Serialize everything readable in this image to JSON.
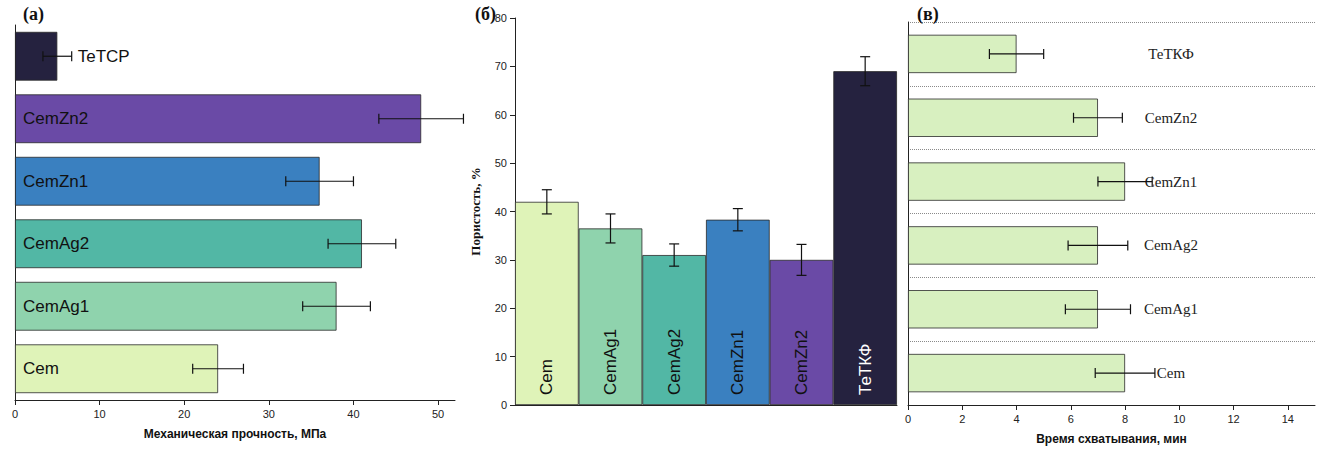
{
  "chart_data": [
    {
      "type": "bar",
      "title": "(a)",
      "orientation": "horizontal",
      "categories": [
        "Cem",
        "CemAg1",
        "CemAg2",
        "CemZn1",
        "CemZn2",
        "TeTCP"
      ],
      "values": [
        24,
        38,
        41,
        36,
        48,
        5
      ],
      "errors": [
        3,
        4,
        4,
        4,
        5,
        1.7
      ],
      "colors": [
        "#dff3b8",
        "#8fd3ad",
        "#52b7a5",
        "#3a80c0",
        "#6a4aa6",
        "#25223f"
      ],
      "xlabel": "Механическая прочность, МПа",
      "xlim": [
        0,
        52
      ],
      "xticks": [
        0,
        10,
        20,
        30,
        40,
        50
      ],
      "grid": false,
      "tick_labels": "x"
    },
    {
      "type": "bar",
      "title": "(б)",
      "categories": [
        "Cem",
        "CemAg1",
        "CemAg2",
        "CemZn1",
        "CemZn2",
        "ТеТКФ"
      ],
      "values": [
        42,
        36.5,
        31,
        38.3,
        30,
        69
      ],
      "errors": [
        2.5,
        3,
        2.3,
        2.3,
        3.2,
        3
      ],
      "colors": [
        "#dff3b8",
        "#8fd3ad",
        "#52b7a5",
        "#3a80c0",
        "#6a4aa6",
        "#25223f"
      ],
      "ylabel": "Пористость, %",
      "ylim": [
        0,
        80
      ],
      "yticks": [
        0,
        10,
        20,
        30,
        40,
        50,
        60,
        70,
        80
      ],
      "grid": false,
      "tick_labels": "y"
    },
    {
      "type": "bar",
      "title": "(в)",
      "orientation": "horizontal",
      "categories": [
        "Cem",
        "CemAg1",
        "CemAg2",
        "CemZn1",
        "CemZn2",
        "ТеТКФ"
      ],
      "values": [
        8,
        7,
        7,
        8,
        7,
        4
      ],
      "errors": [
        1.1,
        1.2,
        1.1,
        1,
        0.9,
        1
      ],
      "color": "#d8f0c0",
      "xlabel": "Время схватывания, мин",
      "xlim": [
        0,
        15
      ],
      "xticks": [
        0,
        2,
        4,
        6,
        8,
        10,
        12,
        14
      ],
      "grid": true
    }
  ]
}
